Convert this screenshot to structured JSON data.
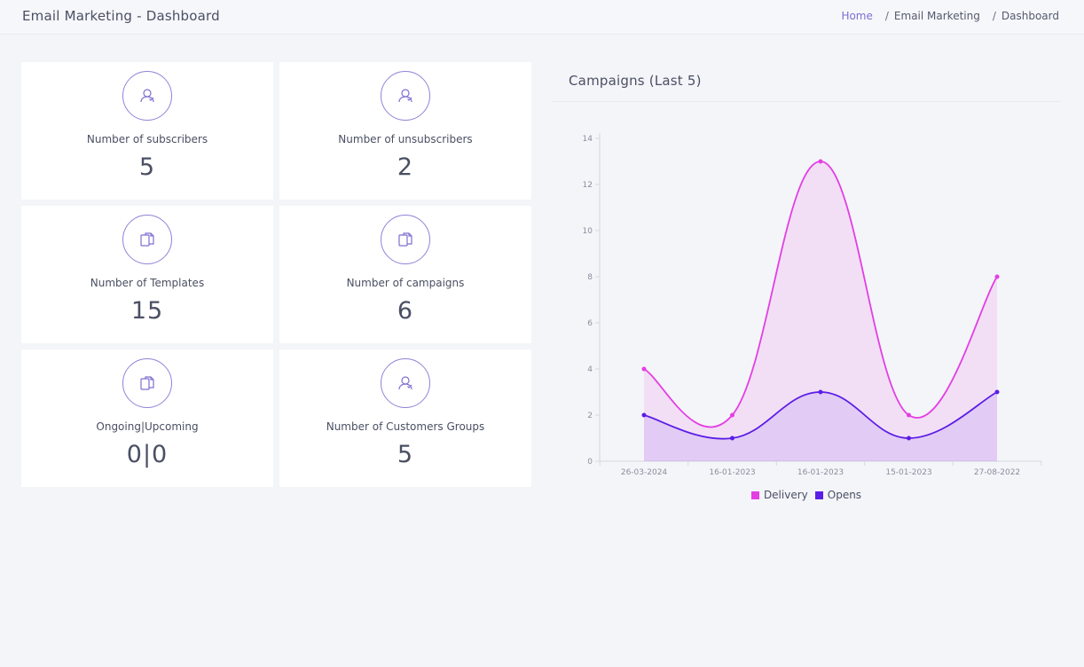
{
  "header": {
    "title": "Email Marketing - Dashboard",
    "breadcrumb": [
      {
        "label": "Home"
      },
      {
        "label": "Email Marketing"
      },
      {
        "label": "Dashboard"
      }
    ]
  },
  "stats": [
    {
      "label": "Number of subscribers",
      "value": "5",
      "icon": "user-icon"
    },
    {
      "label": "Number of unsubscribers",
      "value": "2",
      "icon": "user-icon"
    },
    {
      "label": "Number of Templates",
      "value": "15",
      "icon": "documents-icon"
    },
    {
      "label": "Number of campaigns",
      "value": "6",
      "icon": "documents-icon"
    },
    {
      "label": "Ongoing|Upcoming",
      "value": "0|0",
      "icon": "documents-icon"
    },
    {
      "label": "Number of Customers Groups",
      "value": "5",
      "icon": "user-icon"
    }
  ],
  "colors": {
    "accent": "#8e84d8",
    "delivery": "#e33fe3",
    "opens": "#5b1ee6"
  },
  "chart_title": "Campaigns (Last 5)",
  "chart_data": {
    "type": "area",
    "title": "Campaigns (Last 5)",
    "categories": [
      "26-03-2024",
      "16-01-2023",
      "16-01-2023",
      "15-01-2023",
      "27-08-2022"
    ],
    "y_ticks": [
      "0",
      "2",
      "4",
      "6",
      "8",
      "10",
      "12",
      "14"
    ],
    "ylim": [
      0,
      14
    ],
    "grid": false,
    "legend_position": "bottom",
    "series": [
      {
        "name": "Delivery",
        "values": [
          4,
          2,
          13,
          2,
          8
        ],
        "color": "#e33fe3"
      },
      {
        "name": "Opens",
        "values": [
          2,
          1,
          3,
          1,
          3
        ],
        "color": "#5b1ee6"
      }
    ]
  }
}
